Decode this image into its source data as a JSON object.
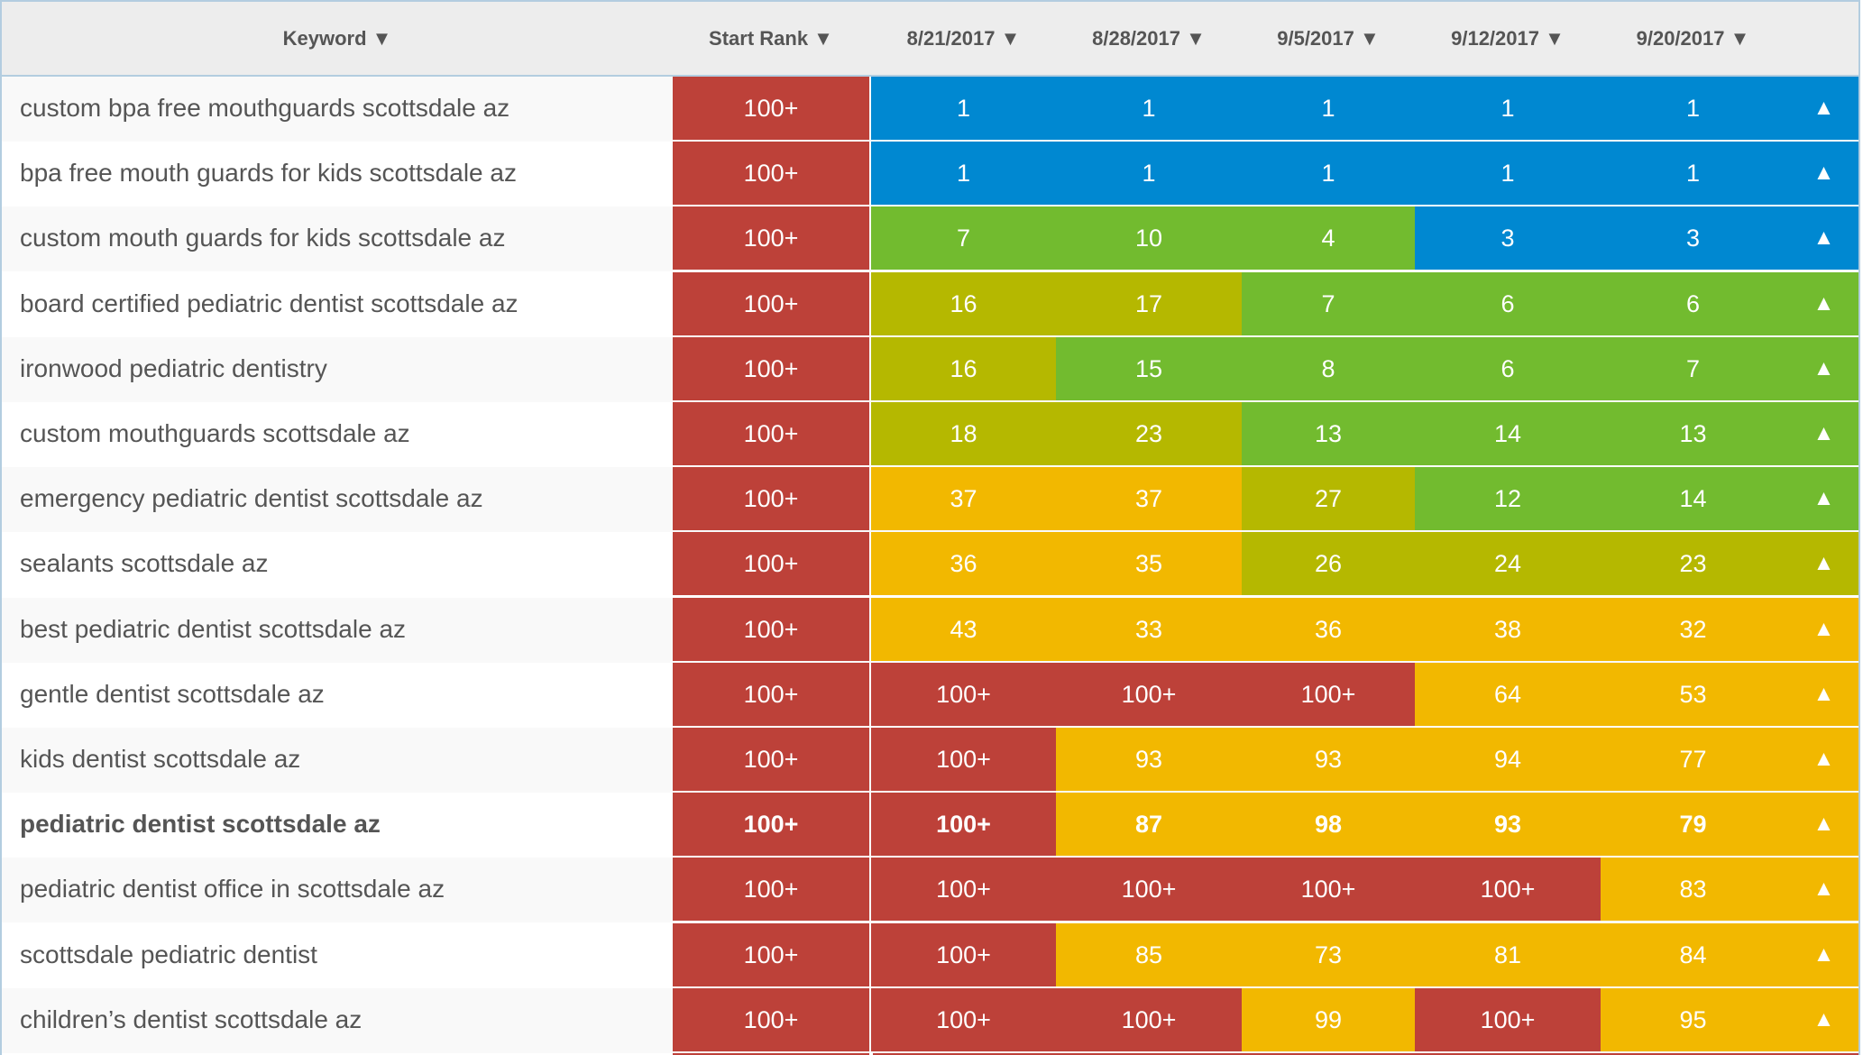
{
  "colors": {
    "red": "#bd4139",
    "blue": "#0088d1",
    "green": "#72bb2f",
    "olive": "#b5b800",
    "yellow": "#f2b800"
  },
  "headers": {
    "keyword": "Keyword ▼",
    "start_rank": "Start Rank ▼",
    "dates": [
      "8/21/2017 ▼",
      "8/28/2017 ▼",
      "9/5/2017 ▼",
      "9/12/2017 ▼",
      "9/20/2017 ▼"
    ]
  },
  "trend_icon": "up-triangle-icon",
  "trend_glyph": "▲",
  "rows": [
    {
      "keyword": "custom bpa free mouthguards scottsdale az",
      "start": "100+",
      "ranks": [
        "1",
        "1",
        "1",
        "1",
        "1"
      ]
    },
    {
      "keyword": "bpa free mouth guards for kids scottsdale az",
      "start": "100+",
      "ranks": [
        "1",
        "1",
        "1",
        "1",
        "1"
      ]
    },
    {
      "keyword": "custom mouth guards for kids scottsdale az",
      "start": "100+",
      "ranks": [
        "7",
        "10",
        "4",
        "3",
        "3"
      ]
    },
    {
      "keyword": "board certified pediatric dentist scottsdale az",
      "start": "100+",
      "ranks": [
        "16",
        "17",
        "7",
        "6",
        "6"
      ]
    },
    {
      "keyword": "ironwood pediatric dentistry",
      "start": "100+",
      "ranks": [
        "16",
        "15",
        "8",
        "6",
        "7"
      ]
    },
    {
      "keyword": "custom mouthguards scottsdale az",
      "start": "100+",
      "ranks": [
        "18",
        "23",
        "13",
        "14",
        "13"
      ]
    },
    {
      "keyword": "emergency pediatric dentist scottsdale az",
      "start": "100+",
      "ranks": [
        "37",
        "37",
        "27",
        "12",
        "14"
      ]
    },
    {
      "keyword": "sealants scottsdale az",
      "start": "100+",
      "ranks": [
        "36",
        "35",
        "26",
        "24",
        "23"
      ]
    },
    {
      "keyword": "best pediatric dentist scottsdale az",
      "start": "100+",
      "ranks": [
        "43",
        "33",
        "36",
        "38",
        "32"
      ]
    },
    {
      "keyword": "gentle dentist scottsdale az",
      "start": "100+",
      "ranks": [
        "100+",
        "100+",
        "100+",
        "64",
        "53"
      ]
    },
    {
      "keyword": "kids dentist scottsdale az",
      "start": "100+",
      "ranks": [
        "100+",
        "93",
        "93",
        "94",
        "77"
      ]
    },
    {
      "keyword": "pediatric dentist scottsdale az",
      "start": "100+",
      "ranks": [
        "100+",
        "87",
        "98",
        "93",
        "79"
      ],
      "bold": true
    },
    {
      "keyword": "pediatric dentist office in scottsdale az",
      "start": "100+",
      "ranks": [
        "100+",
        "100+",
        "100+",
        "100+",
        "83"
      ]
    },
    {
      "keyword": "scottsdale pediatric dentist",
      "start": "100+",
      "ranks": [
        "100+",
        "85",
        "73",
        "81",
        "84"
      ]
    },
    {
      "keyword": "children’s dentist scottsdale az",
      "start": "100+",
      "ranks": [
        "100+",
        "100+",
        "99",
        "100+",
        "95"
      ]
    }
  ]
}
